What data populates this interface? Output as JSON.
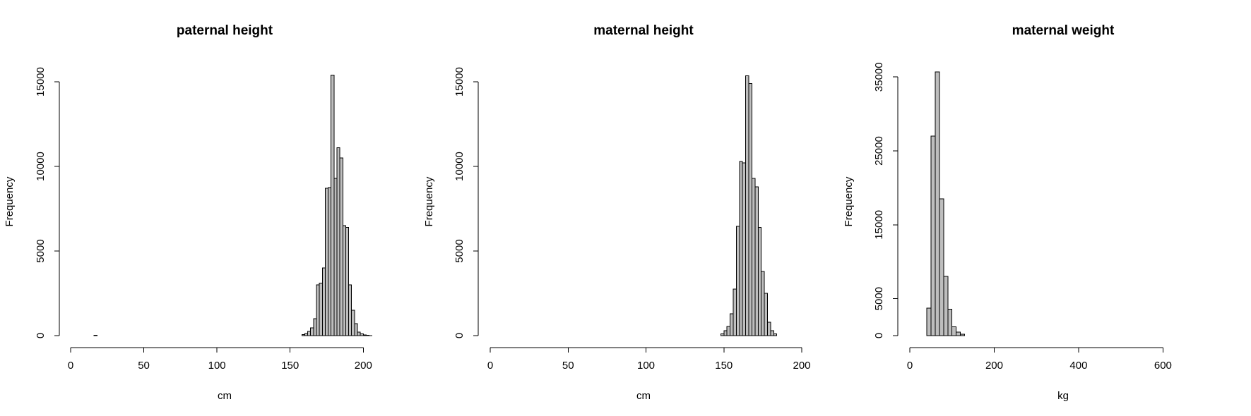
{
  "chart_data": [
    {
      "type": "bar",
      "title": "paternal height",
      "xlabel": "cm",
      "ylabel": "Frequency",
      "xlim": [
        0,
        210
      ],
      "ylim": [
        0,
        15500
      ],
      "xticks": [
        0,
        50,
        100,
        150,
        200
      ],
      "yticks": [
        0,
        5000,
        10000,
        15000
      ],
      "bin_width": 2,
      "bin_start": 0,
      "counts": [
        0,
        0,
        0,
        0,
        0,
        0,
        0,
        0,
        20,
        0,
        0,
        0,
        0,
        0,
        0,
        0,
        0,
        0,
        0,
        0,
        0,
        0,
        0,
        0,
        0,
        0,
        0,
        0,
        0,
        0,
        0,
        0,
        0,
        0,
        0,
        0,
        0,
        0,
        0,
        0,
        0,
        0,
        0,
        0,
        0,
        0,
        0,
        0,
        0,
        0,
        0,
        0,
        0,
        0,
        0,
        0,
        0,
        0,
        0,
        0,
        0,
        0,
        0,
        0,
        0,
        0,
        0,
        0,
        0,
        0,
        0,
        0,
        0,
        0,
        0,
        0,
        0,
        0,
        0,
        60,
        120,
        250,
        450,
        1000,
        3000,
        3100,
        4000,
        8700,
        8750,
        15400,
        9300,
        11100,
        10500,
        6500,
        6400,
        3000,
        1500,
        700,
        200,
        100,
        50,
        30,
        10,
        0,
        0
      ],
      "background": "#ffffff",
      "bar_color": "#bebebe"
    },
    {
      "type": "bar",
      "title": "maternal height",
      "xlabel": "cm",
      "ylabel": "Frequency",
      "xlim": [
        0,
        200
      ],
      "ylim": [
        0,
        15500
      ],
      "xticks": [
        0,
        50,
        100,
        150,
        200
      ],
      "yticks": [
        0,
        5000,
        10000,
        15000
      ],
      "bin_width": 2,
      "bin_start": 0,
      "counts": [
        0,
        0,
        0,
        0,
        0,
        0,
        0,
        0,
        0,
        0,
        0,
        0,
        0,
        0,
        0,
        0,
        0,
        0,
        0,
        0,
        0,
        0,
        0,
        0,
        0,
        0,
        0,
        0,
        0,
        0,
        0,
        0,
        0,
        0,
        0,
        0,
        0,
        0,
        0,
        0,
        0,
        0,
        0,
        0,
        0,
        0,
        0,
        0,
        0,
        0,
        0,
        0,
        0,
        0,
        0,
        0,
        0,
        0,
        0,
        0,
        0,
        0,
        0,
        0,
        0,
        0,
        0,
        0,
        0,
        0,
        0,
        0,
        0,
        0,
        100,
        300,
        550,
        1300,
        2750,
        6450,
        10300,
        10200,
        15350,
        14900,
        9300,
        8800,
        6400,
        3800,
        2500,
        800,
        300,
        100,
        0,
        0,
        0,
        0,
        0,
        0,
        0,
        0
      ],
      "background": "#ffffff",
      "bar_color": "#bebebe"
    },
    {
      "type": "bar",
      "title": "maternal weight",
      "xlabel": "kg",
      "ylabel": "Frequency",
      "xlim": [
        0,
        740
      ],
      "ylim": [
        0,
        35500
      ],
      "xticks": [
        0,
        200,
        400,
        600
      ],
      "yticks": [
        0,
        5000,
        15000,
        25000,
        35000
      ],
      "bin_width": 10,
      "bin_start": 0,
      "counts": [
        0,
        0,
        0,
        0,
        3700,
        27000,
        35700,
        18500,
        8000,
        3600,
        1200,
        500,
        200,
        0,
        0,
        0,
        0,
        0,
        0,
        0,
        0,
        0,
        0,
        0,
        0,
        0,
        0,
        0,
        0,
        0,
        0,
        0,
        0,
        0,
        0,
        0,
        0,
        0,
        0,
        0,
        0,
        0,
        0,
        0,
        0,
        0,
        0,
        0,
        0,
        0,
        0,
        0,
        0,
        0,
        0,
        0,
        0,
        0,
        0,
        0,
        0,
        0,
        0,
        0,
        0,
        0,
        0,
        0,
        0,
        0,
        0,
        0,
        0,
        0
      ],
      "background": "#ffffff",
      "bar_color": "#bebebe"
    }
  ]
}
